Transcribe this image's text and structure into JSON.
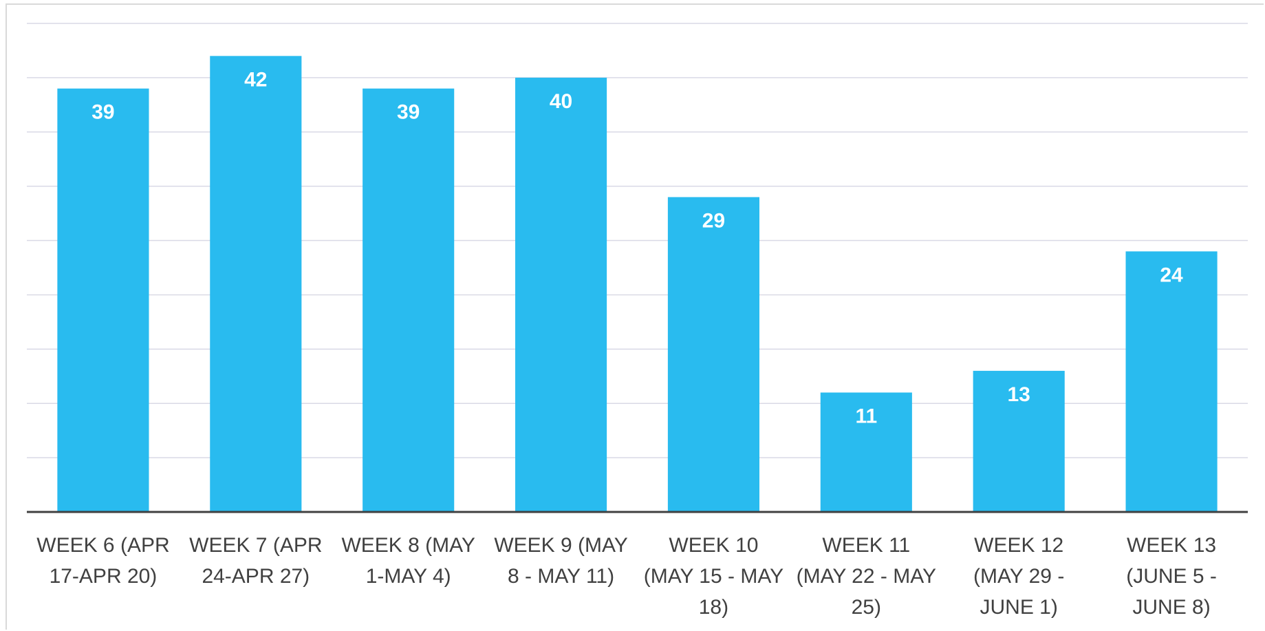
{
  "chart_data": {
    "type": "bar",
    "categories": [
      "WEEK 6 (APR 17-APR 20)",
      "WEEK 7 (APR 24-APR 27)",
      "WEEK 8 (MAY 1-MAY 4)",
      "WEEK 9 (MAY 8 - MAY 11)",
      "WEEK 10 (MAY 15 - MAY 18)",
      "WEEK 11 (MAY 22 - MAY 25)",
      "WEEK 12 (MAY 29 - JUNE 1)",
      "WEEK 13 (JUNE 5 - JUNE 8)"
    ],
    "values": [
      39,
      42,
      39,
      40,
      29,
      11,
      13,
      24
    ],
    "color": "#29bbef",
    "ylim": [
      0,
      45
    ],
    "yticks": [
      0,
      5,
      10,
      15,
      20,
      25,
      30,
      35,
      40,
      45
    ],
    "grid": true
  }
}
